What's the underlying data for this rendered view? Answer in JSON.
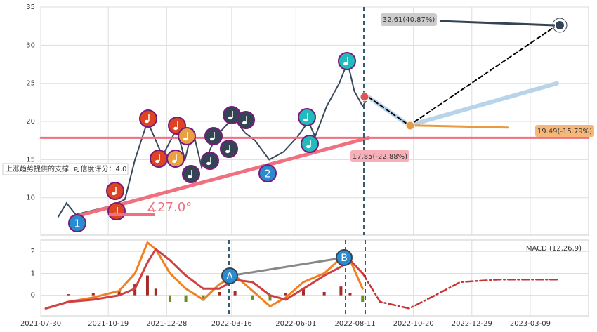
{
  "chart_data": [
    {
      "type": "line",
      "xlim": [
        "2021-07-30",
        "2023-05-18"
      ],
      "ylim": [
        5.1,
        35
      ],
      "yticks": [
        10,
        15,
        20,
        25,
        30,
        35
      ],
      "grid": true,
      "annotations": [
        "32.61(40.87%)",
        "19.49(-15.79%)",
        "17.85(-22.88%)",
        "∡27.0°",
        "上涨趋势提供的支撑: 可信度评分：4.0",
        "1",
        "2"
      ],
      "series": [
        {
          "type": "line",
          "color": "#3a4a5c",
          "width": 2,
          "x": [
            "2021-08-20",
            "2021-08-30",
            "2021-09-10",
            "2021-09-25",
            "2021-10-10",
            "2021-10-25",
            "2021-11-08",
            "2021-11-20",
            "2021-12-05",
            "2021-12-23",
            "2022-01-09",
            "2022-01-19",
            "2022-01-28",
            "2022-02-08",
            "2022-02-21",
            "2022-03-01",
            "2022-03-18",
            "2022-04-01",
            "2022-04-13",
            "2022-04-30",
            "2022-05-17",
            "2022-06-03",
            "2022-06-16",
            "2022-06-24",
            "2022-07-08",
            "2022-07-23",
            "2022-08-02",
            "2022-08-10",
            "2022-08-20",
            "2022-08-27"
          ],
          "values": [
            7.5,
            9.3,
            7.8,
            8.2,
            8.6,
            9.0,
            9.8,
            15,
            20,
            15.5,
            19,
            15,
            19,
            14,
            17,
            18.5,
            20.5,
            18.5,
            17.5,
            15,
            16,
            18,
            20,
            18,
            22,
            25,
            27.8,
            24,
            22,
            23.2
          ]
        },
        {
          "type": "line",
          "color": "#f07080",
          "width": 5,
          "x": [
            "2021-09-05",
            "2022-08-27"
          ],
          "values": [
            7.4,
            17.85
          ]
        },
        {
          "type": "line",
          "color": "#f07080",
          "width": 3,
          "x": [
            "2021-07-30",
            "2023-05-18"
          ],
          "values": [
            17.85,
            17.85
          ]
        },
        {
          "type": "line",
          "color": "#b8d4ea",
          "width": 6,
          "x": [
            "2022-08-27",
            "2022-10-15",
            "2023-04-10"
          ],
          "values": [
            23.2,
            19.49,
            25
          ]
        },
        {
          "type": "line",
          "color": "#000",
          "width": 2,
          "dash": "6,4",
          "x": [
            "2022-08-27",
            "2022-10-15",
            "2023-04-10"
          ],
          "values": [
            23.2,
            19.49,
            32.61
          ]
        },
        {
          "type": "line",
          "color": "#e89a40",
          "width": 3,
          "x": [
            "2022-10-15",
            "2023-02-10"
          ],
          "values": [
            19.49,
            19.2
          ]
        }
      ]
    },
    {
      "type": "line",
      "xlim": [
        "2021-07-30",
        "2023-05-18"
      ],
      "ylim": [
        -0.94,
        2.52
      ],
      "yticks": [
        0,
        1,
        2
      ],
      "grid": true,
      "xticks": [
        "2021-07-30",
        "2021-10-19",
        "2021-12-28",
        "2022-03-16",
        "2022-06-01",
        "2022-08-11",
        "2022-10-20",
        "2022-12-29",
        "2023-03-09"
      ],
      "annotations": [
        "MACD (12,26,9)",
        "A",
        "B"
      ],
      "series": [
        {
          "type": "bar",
          "color": "#a52a2a",
          "negative_color": "#6b8e23",
          "x": [
            "2021-09-01",
            "2021-10-01",
            "2021-11-01",
            "2021-11-20",
            "2021-12-05",
            "2021-12-15",
            "2022-01-01",
            "2022-01-20",
            "2022-02-10",
            "2022-03-01",
            "2022-03-20",
            "2022-04-10",
            "2022-05-01",
            "2022-05-20",
            "2022-06-10",
            "2022-07-05",
            "2022-07-25",
            "2022-08-05",
            "2022-08-20"
          ],
          "values": [
            0.05,
            0.1,
            0.2,
            0.5,
            0.9,
            0.3,
            -0.3,
            -0.3,
            -0.25,
            0.15,
            0.2,
            -0.2,
            -0.25,
            0.1,
            0.3,
            0.15,
            0.4,
            0.1,
            -0.3
          ]
        },
        {
          "type": "line",
          "color": "#f08020",
          "width": 3,
          "x": [
            "2021-08-05",
            "2021-09-01",
            "2021-10-01",
            "2021-11-01",
            "2021-11-20",
            "2021-12-05",
            "2021-12-15",
            "2022-01-01",
            "2022-01-20",
            "2022-02-10",
            "2022-03-01",
            "2022-03-20",
            "2022-04-10",
            "2022-05-01",
            "2022-05-20",
            "2022-06-10",
            "2022-07-05",
            "2022-07-25",
            "2022-08-05",
            "2022-08-20"
          ],
          "values": [
            -0.6,
            -0.3,
            -0.1,
            0.2,
            1.0,
            2.4,
            2.1,
            1.0,
            0.3,
            -0.2,
            0.5,
            0.9,
            0.2,
            -0.5,
            -0.1,
            0.6,
            1.0,
            1.7,
            1.6,
            0.3
          ]
        },
        {
          "type": "line",
          "color": "#d04040",
          "width": 3,
          "x": [
            "2021-08-05",
            "2021-09-01",
            "2021-10-01",
            "2021-11-01",
            "2021-11-20",
            "2021-12-05",
            "2021-12-15",
            "2022-01-01",
            "2022-01-20",
            "2022-02-10",
            "2022-03-01",
            "2022-03-20",
            "2022-04-10",
            "2022-05-01",
            "2022-05-20",
            "2022-06-10",
            "2022-07-05",
            "2022-07-25",
            "2022-08-05",
            "2022-08-20"
          ],
          "values": [
            -0.6,
            -0.3,
            -0.2,
            0.0,
            0.3,
            1.5,
            2.1,
            1.6,
            0.9,
            0.3,
            0.3,
            0.7,
            0.6,
            0.0,
            -0.2,
            0.3,
            0.9,
            1.3,
            1.6,
            1.0
          ]
        },
        {
          "type": "line",
          "color": "#c83232",
          "width": 2.5,
          "dash": "10,4,2,4",
          "x": [
            "2022-08-20",
            "2022-09-10",
            "2022-10-15",
            "2022-11-15",
            "2022-12-15",
            "2023-01-30",
            "2023-04-10"
          ],
          "values": [
            1.0,
            -0.3,
            -0.6,
            0.0,
            0.6,
            0.72,
            0.72
          ]
        }
      ]
    }
  ]
}
